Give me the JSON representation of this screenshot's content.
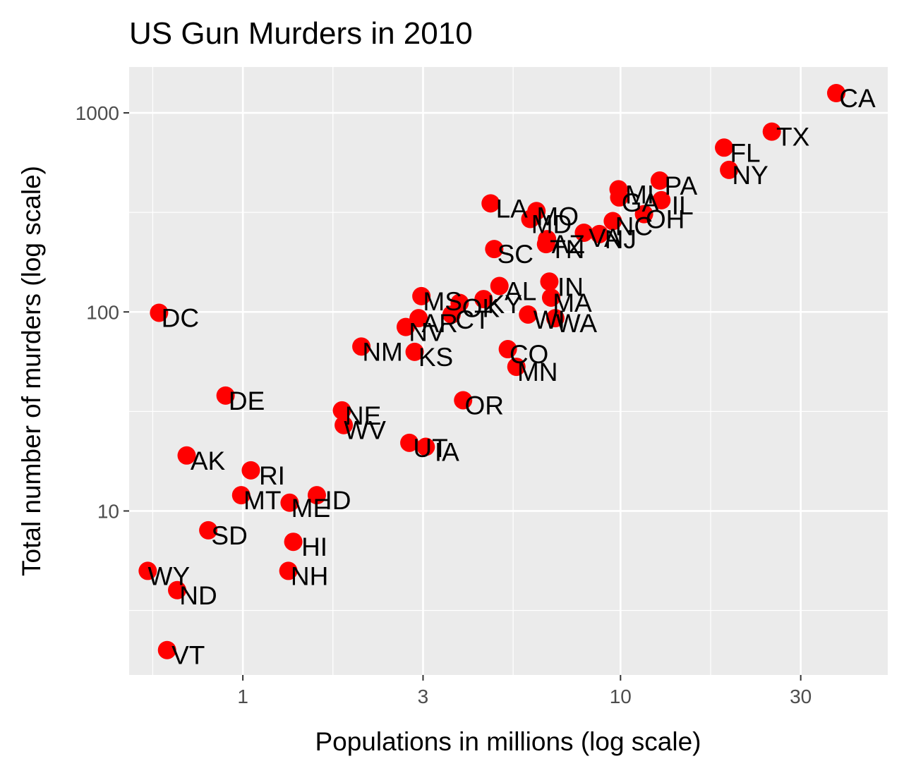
{
  "chart_data": {
    "type": "scatter",
    "title": "US Gun Murders in 2010",
    "xlabel": "Populations in millions (log scale)",
    "ylabel": "Total number of murders (log scale)",
    "x_scale": "log10",
    "y_scale": "log10",
    "xlim": [
      0.5,
      51
    ],
    "ylim": [
      1.5,
      1700
    ],
    "x_ticks": [
      1,
      3,
      10,
      30
    ],
    "y_ticks": [
      10,
      100,
      1000
    ],
    "grid": true,
    "legend": "none",
    "point_color": "#ff0000",
    "points": [
      {
        "label": "CA",
        "x": 37.25,
        "y": 1257
      },
      {
        "label": "TX",
        "x": 25.15,
        "y": 805
      },
      {
        "label": "FL",
        "x": 18.8,
        "y": 669
      },
      {
        "label": "NY",
        "x": 19.38,
        "y": 517
      },
      {
        "label": "PA",
        "x": 12.7,
        "y": 457
      },
      {
        "label": "MI",
        "x": 9.88,
        "y": 413
      },
      {
        "label": "GA",
        "x": 9.92,
        "y": 376
      },
      {
        "label": "IL",
        "x": 12.83,
        "y": 364
      },
      {
        "label": "LA",
        "x": 4.53,
        "y": 351
      },
      {
        "label": "MO",
        "x": 5.99,
        "y": 321
      },
      {
        "label": "OH",
        "x": 11.54,
        "y": 310
      },
      {
        "label": "MD",
        "x": 5.77,
        "y": 293
      },
      {
        "label": "NC",
        "x": 9.54,
        "y": 286
      },
      {
        "label": "NJ",
        "x": 8.79,
        "y": 246
      },
      {
        "label": "VA",
        "x": 8.0,
        "y": 250
      },
      {
        "label": "TN",
        "x": 6.35,
        "y": 219
      },
      {
        "label": "AZ",
        "x": 6.39,
        "y": 232
      },
      {
        "label": "SC",
        "x": 4.63,
        "y": 207
      },
      {
        "label": "AL",
        "x": 4.78,
        "y": 135
      },
      {
        "label": "IN",
        "x": 6.48,
        "y": 142
      },
      {
        "label": "MS",
        "x": 2.97,
        "y": 120
      },
      {
        "label": "KY",
        "x": 4.34,
        "y": 116
      },
      {
        "label": "OK",
        "x": 3.75,
        "y": 111
      },
      {
        "label": "MA",
        "x": 6.55,
        "y": 118
      },
      {
        "label": "AR",
        "x": 2.92,
        "y": 93
      },
      {
        "label": "CT",
        "x": 3.57,
        "y": 97
      },
      {
        "label": "WI",
        "x": 5.69,
        "y": 97
      },
      {
        "label": "WA",
        "x": 6.72,
        "y": 93
      },
      {
        "label": "NV",
        "x": 2.7,
        "y": 84
      },
      {
        "label": "DC",
        "x": 0.6,
        "y": 99
      },
      {
        "label": "NM",
        "x": 2.06,
        "y": 67
      },
      {
        "label": "KS",
        "x": 2.85,
        "y": 63
      },
      {
        "label": "CO",
        "x": 5.03,
        "y": 65
      },
      {
        "label": "MN",
        "x": 5.3,
        "y": 53
      },
      {
        "label": "DE",
        "x": 0.9,
        "y": 38
      },
      {
        "label": "OR",
        "x": 3.83,
        "y": 36
      },
      {
        "label": "NE",
        "x": 1.83,
        "y": 32
      },
      {
        "label": "WV",
        "x": 1.85,
        "y": 27
      },
      {
        "label": "UT",
        "x": 2.76,
        "y": 22
      },
      {
        "label": "IA",
        "x": 3.05,
        "y": 21
      },
      {
        "label": "AK",
        "x": 0.71,
        "y": 19
      },
      {
        "label": "RI",
        "x": 1.05,
        "y": 16
      },
      {
        "label": "MT",
        "x": 0.99,
        "y": 12
      },
      {
        "label": "ME",
        "x": 1.33,
        "y": 11
      },
      {
        "label": "ID",
        "x": 1.57,
        "y": 12
      },
      {
        "label": "SD",
        "x": 0.81,
        "y": 8
      },
      {
        "label": "HI",
        "x": 1.36,
        "y": 7
      },
      {
        "label": "WY",
        "x": 0.56,
        "y": 5
      },
      {
        "label": "NH",
        "x": 1.32,
        "y": 5
      },
      {
        "label": "ND",
        "x": 0.67,
        "y": 4
      },
      {
        "label": "VT",
        "x": 0.63,
        "y": 2
      }
    ]
  }
}
